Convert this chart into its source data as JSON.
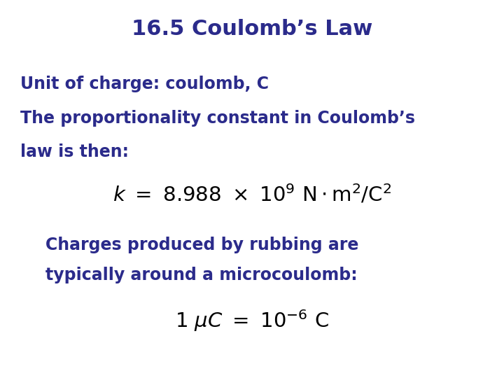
{
  "title": "16.5 Coulomb’s Law",
  "title_color": "#2b2b8b",
  "title_fontsize": 22,
  "bg_color": "#ffffff",
  "text_color": "#2b2b8b",
  "body_fontsize": 17,
  "formula_fontsize": 21,
  "line1": "Unit of charge: coulomb, C",
  "line2_a": "The proportionality constant in Coulomb’s",
  "line2_b": "law is then:",
  "line3_a": "Charges produced by rubbing are",
  "line3_b": "typically around a microcoulomb:"
}
